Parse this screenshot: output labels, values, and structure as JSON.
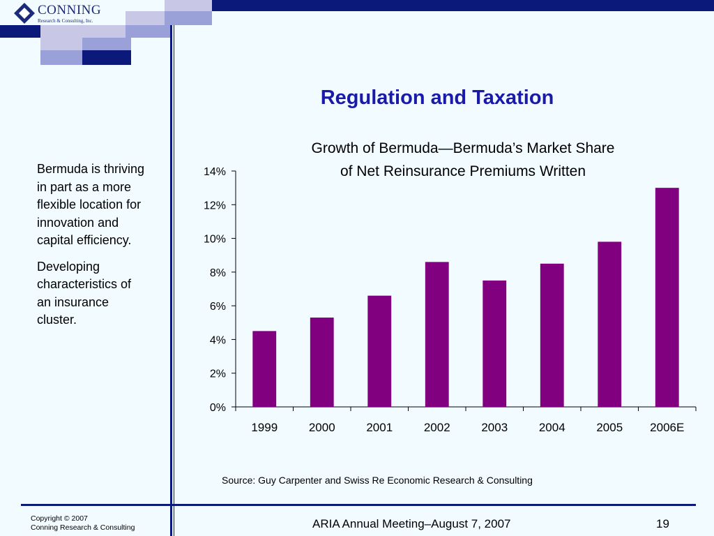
{
  "logo": {
    "name": "CONNING",
    "tagline": "Research & Consulting, Inc."
  },
  "title": "Regulation and Taxation",
  "sidebar": {
    "paragraphs": [
      "Bermuda is thriving in part as a more flexible location for innovation and capital efficiency.",
      "Developing characteristics of an insurance cluster."
    ]
  },
  "chart_data": {
    "type": "bar",
    "title": "Growth of Bermuda—Bermuda’s Market Share of Net Reinsurance Premiums Written",
    "title_lines": [
      "Growth of Bermuda—Bermuda’s Market Share",
      "of Net Reinsurance Premiums Written"
    ],
    "categories": [
      "1999",
      "2000",
      "2001",
      "2002",
      "2003",
      "2004",
      "2005",
      "2006E"
    ],
    "values": [
      4.5,
      5.3,
      6.6,
      8.6,
      7.5,
      8.5,
      9.8,
      13.0
    ],
    "xlabel": "",
    "ylabel": "",
    "ylim": [
      0,
      14
    ],
    "yticks": [
      0,
      2,
      4,
      6,
      8,
      10,
      12,
      14
    ],
    "ytick_suffix": "%",
    "grid": false,
    "bar_color": "#800080"
  },
  "source": "Source: Guy Carpenter and Swiss Re Economic Research & Consulting",
  "footer": {
    "copyright_line1": "Copyright © 2007",
    "copyright_line2": "Conning Research & Consulting",
    "center": "ARIA Annual Meeting–August 7, 2007",
    "page": "19"
  }
}
